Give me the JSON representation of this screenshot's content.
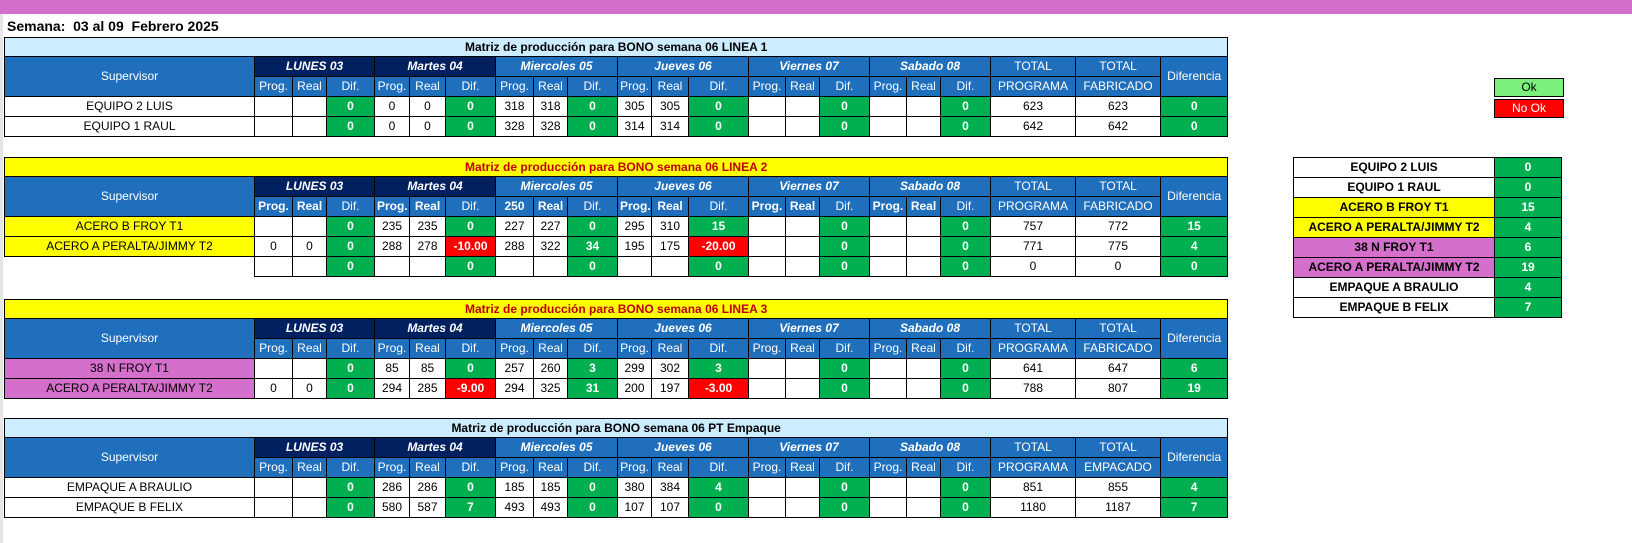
{
  "week_label": "Semana:  03 al 09  Febrero 2025",
  "colors": {
    "accent_blue": "#1f6fbd",
    "navy": "#002060",
    "ok_green": "#00b050",
    "no_ok_red": "#ff0000",
    "highlight_yellow": "#ffff00",
    "pink": "#d46fcc"
  },
  "legend": {
    "ok": "Ok",
    "no_ok": "No Ok"
  },
  "headers": {
    "supervisor": "Supervisor",
    "days": [
      "LUNES 03",
      "Martes  04",
      "Miercoles 05",
      "Jueves 06",
      "Viernes 07",
      "Sabado 08"
    ],
    "prog": "Prog.",
    "real": "Real",
    "dif": "Dif.",
    "total_programa_1": "TOTAL",
    "total_programa_2": "PROGRAMA",
    "total_fab_1": "TOTAL",
    "total_fab_2": "FABRICADO",
    "total_emp_2": "EMPACADO",
    "diferencia": "Diferencia",
    "miercoles_prog_l2": "250"
  },
  "tables": [
    {
      "title": "Matriz de producción para BONO semana 06 LINEA 1",
      "total_label": "FABRICADO",
      "rows": [
        {
          "name": "EQUIPO 2 LUIS",
          "cells": [
            "",
            "",
            "0",
            "0",
            "0",
            "0",
            "318",
            "318",
            "0",
            "305",
            "305",
            "0",
            "",
            "",
            "0",
            "",
            "",
            "0",
            "623",
            "623",
            "0"
          ]
        },
        {
          "name": "EQUIPO 1   RAUL",
          "cells": [
            "",
            "",
            "0",
            "0",
            "0",
            "0",
            "328",
            "328",
            "0",
            "314",
            "314",
            "0",
            "",
            "",
            "0",
            "",
            "",
            "0",
            "642",
            "642",
            "0"
          ]
        }
      ]
    },
    {
      "title": "Matriz de producción para BONO semana 06 LINEA 2",
      "total_label": "FABRICADO",
      "rows": [
        {
          "name": "ACERO B FROY      T1",
          "cells": [
            "",
            "",
            "0",
            "235",
            "235",
            "0",
            "227",
            "227",
            "0",
            "295",
            "310",
            "15",
            "",
            "",
            "0",
            "",
            "",
            "0",
            "757",
            "772",
            "15"
          ]
        },
        {
          "name": "ACERO A PERALTA/JIMMY      T2",
          "cells": [
            "0",
            "0",
            "0",
            "288",
            "278",
            "-10.00",
            "288",
            "322",
            "34",
            "195",
            "175",
            "-20.00",
            "",
            "",
            "0",
            "",
            "",
            "0",
            "771",
            "775",
            "4"
          ]
        },
        {
          "name": "",
          "cells": [
            "",
            "",
            "0",
            "",
            "",
            "0",
            "",
            "",
            "0",
            "",
            "",
            "0",
            "",
            "",
            "0",
            "",
            "",
            "0",
            "0",
            "0",
            "0"
          ]
        }
      ]
    },
    {
      "title": "Matriz de producción para BONO semana 06 LINEA 3",
      "total_label": "FABRICADO",
      "rows": [
        {
          "name": "38 N FROY  T1",
          "cells": [
            "",
            "",
            "0",
            "85",
            "85",
            "0",
            "257",
            "260",
            "3",
            "299",
            "302",
            "3",
            "",
            "",
            "0",
            "",
            "",
            "0",
            "641",
            "647",
            "6"
          ]
        },
        {
          "name": "ACERO A PERALTA/JIMMY     T2",
          "cells": [
            "0",
            "0",
            "0",
            "294",
            "285",
            "-9.00",
            "294",
            "325",
            "31",
            "200",
            "197",
            "-3.00",
            "",
            "",
            "0",
            "",
            "",
            "0",
            "788",
            "807",
            "19"
          ]
        }
      ]
    },
    {
      "title": "Matriz de producción para BONO semana 06 PT  Empaque",
      "total_label": "EMPACADO",
      "rows": [
        {
          "name": "EMPAQUE A   BRAULIO",
          "cells": [
            "",
            "",
            "0",
            "286",
            "286",
            "0",
            "185",
            "185",
            "0",
            "380",
            "384",
            "4",
            "",
            "",
            "0",
            "",
            "",
            "0",
            "851",
            "855",
            "4"
          ]
        },
        {
          "name": "EMPAQUE B   FELIX",
          "cells": [
            "",
            "",
            "0",
            "580",
            "587",
            "7",
            "493",
            "493",
            "0",
            "107",
            "107",
            "0",
            "",
            "",
            "0",
            "",
            "",
            "0",
            "1180",
            "1187",
            "7"
          ]
        }
      ]
    }
  ],
  "summary": [
    {
      "name": "EQUIPO 2 LUIS",
      "value": "0"
    },
    {
      "name": "EQUIPO 1   RAUL",
      "value": "0"
    },
    {
      "name": "ACERO B FROY      T1",
      "value": "15"
    },
    {
      "name": "ACERO A PERALTA/JIMMY      T2",
      "value": "4"
    },
    {
      "name": "38 N FROY  T1",
      "value": "6"
    },
    {
      "name": "ACERO A PERALTA/JIMMY      T2",
      "value": "19"
    },
    {
      "name": "EMPAQUE A   BRAULIO",
      "value": "4"
    },
    {
      "name": "EMPAQUE B   FELIX",
      "value": "7"
    }
  ]
}
